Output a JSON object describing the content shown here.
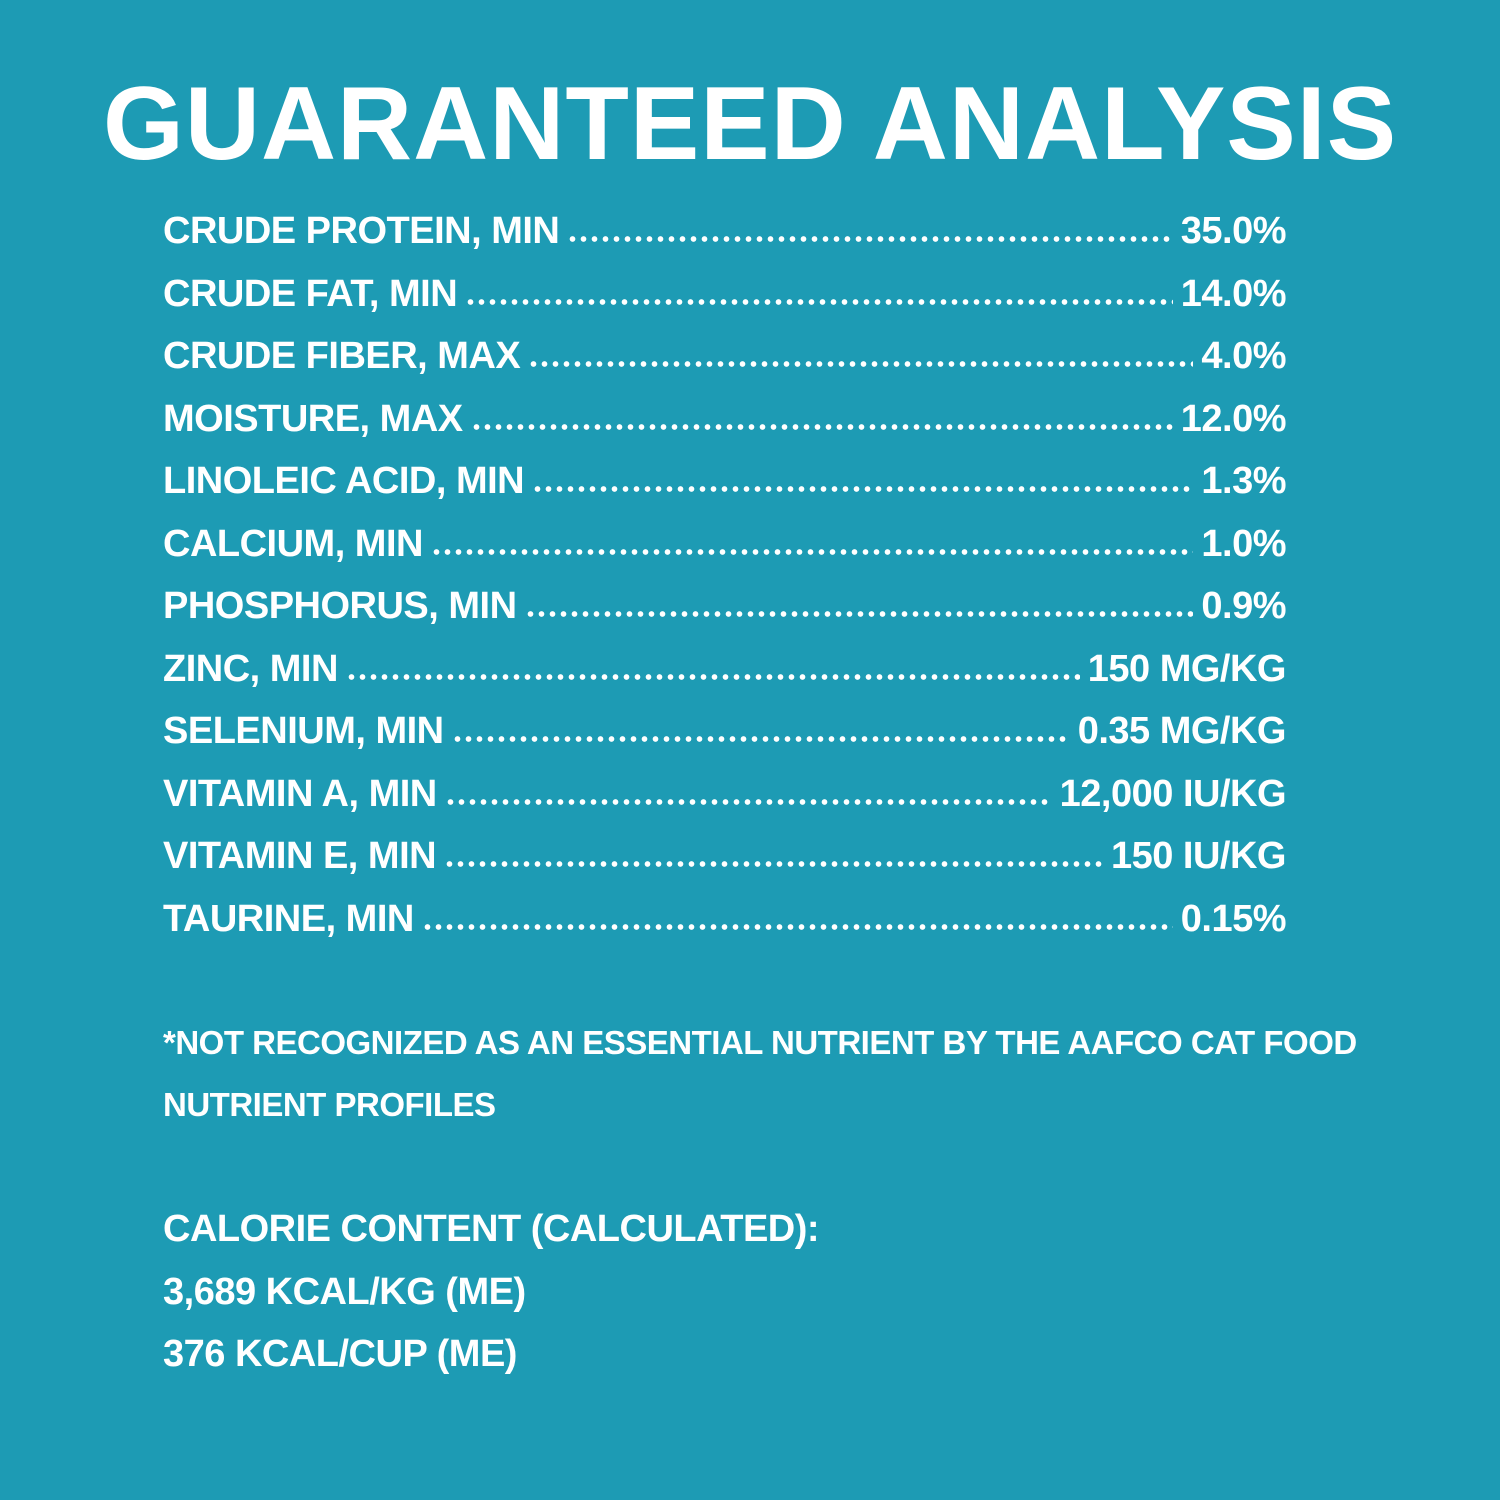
{
  "title": "GUARANTEED ANALYSIS",
  "rows": [
    {
      "label": "CRUDE PROTEIN, MIN",
      "value": "35.0%"
    },
    {
      "label": "CRUDE FAT, MIN",
      "value": "14.0%"
    },
    {
      "label": "CRUDE FIBER, MAX",
      "value": "4.0%"
    },
    {
      "label": "MOISTURE, MAX",
      "value": "12.0%"
    },
    {
      "label": "LINOLEIC ACID, MIN",
      "value": "1.3%"
    },
    {
      "label": "CALCIUM, MIN",
      "value": "1.0%"
    },
    {
      "label": "PHOSPHORUS, MIN",
      "value": "0.9%"
    },
    {
      "label": "ZINC, MIN",
      "value": "150 MG/KG"
    },
    {
      "label": "SELENIUM, MIN",
      "value": "0.35 MG/KG"
    },
    {
      "label": "VITAMIN A, MIN",
      "value": "12,000 IU/KG"
    },
    {
      "label": "VITAMIN E, MIN",
      "value": "150 IU/KG"
    },
    {
      "label": "TAURINE, MIN",
      "value": "0.15%"
    }
  ],
  "footnote": [
    "*NOT RECOGNIZED AS AN ESSENTIAL NUTRIENT BY THE AAFCO CAT FOOD",
    "NUTRIENT PROFILES"
  ],
  "calorie": [
    "CALORIE CONTENT (CALCULATED):",
    "3,689 KCAL/KG (ME)",
    "376 KCAL/CUP (ME)"
  ],
  "colors": {
    "background": "#1d9bb4",
    "text": "#ffffff"
  }
}
